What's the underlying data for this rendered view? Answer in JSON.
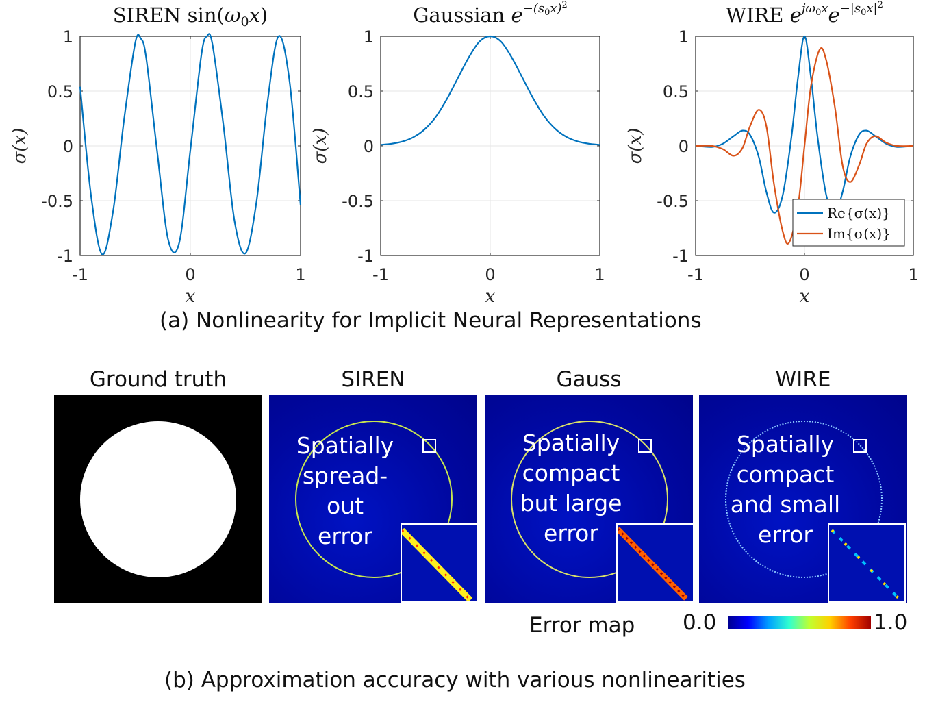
{
  "chart_data": [
    {
      "type": "line",
      "title": "SIREN sin(ω₀x)",
      "xlabel": "x",
      "ylabel": "σ(x)",
      "xlim": [
        -1,
        1
      ],
      "ylim": [
        -1,
        1
      ],
      "xticks": [
        "-1",
        "0",
        "1"
      ],
      "yticks": [
        "1",
        "0.5",
        "0",
        "-0.5",
        "-1"
      ],
      "grid": true,
      "series": [
        {
          "color": "#0072BD",
          "x": [
            -1,
            -0.9,
            -0.8,
            -0.7,
            -0.6,
            -0.5,
            -0.45,
            -0.4,
            -0.3,
            -0.2,
            -0.1,
            0,
            0.1,
            0.15,
            0.2,
            0.3,
            0.4,
            0.5,
            0.6,
            0.7,
            0.8,
            0.9,
            1
          ],
          "y": [
            0.54,
            -0.46,
            -0.99,
            -0.59,
            0.25,
            0.94,
            0.98,
            0.8,
            -0.06,
            -0.86,
            -0.88,
            -0.04,
            0.83,
            1.0,
            0.93,
            0.19,
            -0.68,
            -0.98,
            -0.51,
            0.4,
            1.0,
            0.59,
            -0.54
          ]
        }
      ]
    },
    {
      "type": "line",
      "title": "Gaussian e^{-(s₀x)²}",
      "xlabel": "x",
      "ylabel": "σ(x)",
      "xlim": [
        -1,
        1
      ],
      "ylim": [
        -1,
        1
      ],
      "xticks": [
        "-1",
        "0",
        "1"
      ],
      "yticks": [
        "1",
        "0.5",
        "0",
        "-0.5",
        "-1"
      ],
      "grid": true,
      "series": [
        {
          "color": "#0072BD",
          "x": [
            -1,
            -0.9,
            -0.8,
            -0.7,
            -0.6,
            -0.5,
            -0.4,
            -0.3,
            -0.2,
            -0.1,
            0,
            0.1,
            0.2,
            0.3,
            0.4,
            0.5,
            0.6,
            0.7,
            0.8,
            0.9,
            1
          ],
          "y": [
            0.01,
            0.02,
            0.04,
            0.08,
            0.15,
            0.26,
            0.42,
            0.61,
            0.8,
            0.95,
            1.0,
            0.95,
            0.8,
            0.61,
            0.42,
            0.26,
            0.15,
            0.08,
            0.04,
            0.02,
            0.01
          ]
        }
      ]
    },
    {
      "type": "line",
      "title": "WIRE e^{jω₀x}e^{-|s₀x|²}",
      "xlabel": "x",
      "ylabel": "σ(x)",
      "xlim": [
        -1,
        1
      ],
      "ylim": [
        -1,
        1
      ],
      "xticks": [
        "-1",
        "0",
        "1"
      ],
      "yticks": [
        "1",
        "0.5",
        "0",
        "-0.5",
        "-1"
      ],
      "grid": true,
      "legend": "bottom-right",
      "series": [
        {
          "name": "Re{σ(x)}",
          "color": "#0072BD",
          "x": [
            -1,
            -0.85,
            -0.75,
            -0.65,
            -0.57,
            -0.5,
            -0.42,
            -0.35,
            -0.28,
            -0.2,
            -0.12,
            -0.06,
            0,
            0.06,
            0.12,
            0.2,
            0.28,
            0.35,
            0.42,
            0.5,
            0.57,
            0.65,
            0.75,
            0.85,
            1
          ],
          "y": [
            0,
            -0.01,
            0.02,
            0.09,
            0.14,
            0.1,
            -0.1,
            -0.42,
            -0.61,
            -0.45,
            0.08,
            0.62,
            1.0,
            0.62,
            0.08,
            -0.45,
            -0.61,
            -0.42,
            -0.1,
            0.1,
            0.14,
            0.09,
            0.02,
            -0.01,
            0
          ]
        },
        {
          "name": "Im{σ(x)}",
          "color": "#D95319",
          "x": [
            -1,
            -0.85,
            -0.75,
            -0.65,
            -0.57,
            -0.5,
            -0.42,
            -0.35,
            -0.28,
            -0.2,
            -0.14,
            -0.06,
            0,
            0.06,
            0.14,
            0.2,
            0.28,
            0.35,
            0.42,
            0.5,
            0.57,
            0.65,
            0.75,
            0.85,
            1
          ],
          "y": [
            0,
            0.0,
            -0.03,
            -0.09,
            -0.02,
            0.18,
            0.33,
            0.18,
            -0.35,
            -0.78,
            -0.88,
            -0.55,
            0,
            0.55,
            0.88,
            0.78,
            0.35,
            -0.18,
            -0.33,
            -0.18,
            0.02,
            0.09,
            0.03,
            0.0,
            0
          ]
        }
      ]
    }
  ],
  "caption_a": "(a) Nonlinearity for Implicit Neural Representations",
  "panels": [
    {
      "title": "Ground truth"
    },
    {
      "title": "SIREN",
      "text": [
        "Spatially",
        "spread-",
        "out",
        "error"
      ]
    },
    {
      "title": "Gauss",
      "text": [
        "Spatially",
        "compact",
        "but large",
        "error"
      ]
    },
    {
      "title": "WIRE",
      "text": [
        "Spatially",
        "compact",
        "and small",
        "error"
      ]
    }
  ],
  "colorbar": {
    "label": "Error map",
    "min": "0.0",
    "max": "1.0"
  },
  "caption_b": "(b) Approximation accuracy with various nonlinearities"
}
